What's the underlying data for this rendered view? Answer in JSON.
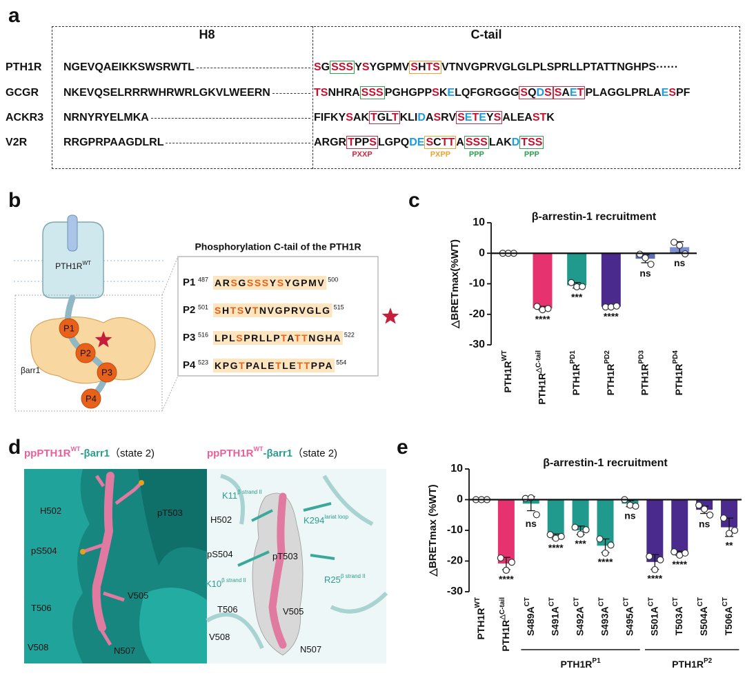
{
  "panel_labels": [
    "a",
    "b",
    "c",
    "d",
    "e"
  ],
  "alignment": {
    "h8_header": "H8",
    "ctail_header": "C-tail",
    "palette": {
      "r": "#c8102e",
      "b": "#1b9be0",
      "k": "#111111"
    },
    "rows": [
      {
        "name": "PTH1R",
        "h8": "NGEVQAEIKKSWSRWTL",
        "tail": [
          [
            "S",
            "r"
          ],
          [
            "G",
            "k"
          ],
          {
            "box": "#2e9e4f",
            "runs": [
              [
                "SSS",
                "r"
              ]
            ]
          },
          [
            "Y",
            "k"
          ],
          [
            "S",
            "r"
          ],
          [
            "YGPMV",
            "k"
          ],
          {
            "box": "#f2a22c",
            "runs": [
              [
                "S",
                "r"
              ],
              [
                "H",
                "k"
              ],
              [
                "TS",
                "r"
              ]
            ]
          },
          [
            "VTNVGPRVGLGLPLSPRLLPTATTNGHPS",
            "k"
          ],
          [
            "······",
            "k"
          ]
        ]
      },
      {
        "name": "GCGR",
        "h8": "NKEVQSELRRRWHRWRLGKVLWEERN",
        "tail": [
          [
            "TS",
            "r"
          ],
          [
            "NHRA",
            "k"
          ],
          {
            "box": "#2e9e4f",
            "runs": [
              [
                "SSS",
                "r"
              ]
            ]
          },
          [
            "PGHGPP",
            "k"
          ],
          [
            "S",
            "r"
          ],
          [
            "K",
            "k"
          ],
          [
            "E",
            "b"
          ],
          [
            "LQFGRGGG",
            "k"
          ],
          {
            "box": "#d9243d",
            "runs": [
              [
                "S",
                "r"
              ],
              [
                "Q",
                "k"
              ],
              [
                "D",
                "b"
              ],
              [
                "S",
                "r"
              ]
            ]
          },
          {
            "box": "#d9243d",
            "runs": [
              [
                "S",
                "r"
              ],
              [
                "A",
                "k"
              ],
              [
                "E",
                "b"
              ],
              [
                "T",
                "r"
              ]
            ]
          },
          [
            "PLAGGLPRLA",
            "k"
          ],
          [
            "E",
            "b"
          ],
          [
            "S",
            "r"
          ],
          [
            "PF",
            "k"
          ]
        ]
      },
      {
        "name": "ACKR3",
        "h8": "NRNYRYELMKA",
        "tail": [
          [
            "FIFKY",
            "k"
          ],
          [
            "S",
            "r"
          ],
          [
            "AK",
            "k"
          ],
          {
            "box": "#d9243d",
            "runs": [
              [
                "T",
                "r"
              ],
              [
                "GL",
                "k"
              ],
              [
                "T",
                "r"
              ]
            ]
          },
          [
            "KLI",
            "k"
          ],
          [
            "D",
            "b"
          ],
          [
            "A",
            "k"
          ],
          [
            "S",
            "r"
          ],
          [
            "RV",
            "k"
          ],
          {
            "box": "#d9243d",
            "runs": [
              [
                "S",
                "r"
              ],
              [
                "E",
                "b"
              ],
              [
                "T",
                "r"
              ],
              [
                "E",
                "b"
              ],
              [
                "Y",
                "k"
              ],
              [
                "S",
                "r"
              ]
            ]
          },
          [
            "ALEA",
            "k"
          ],
          [
            "ST",
            "r"
          ],
          [
            "K",
            "k"
          ]
        ]
      },
      {
        "name": "V2R",
        "h8": "RRGPRPAAGDLRL",
        "tail": [
          [
            "ARGR",
            "k"
          ],
          {
            "box": "#d9243d",
            "motif": "PXXP",
            "runs": [
              [
                "T",
                "r"
              ],
              [
                "PP",
                "k"
              ],
              [
                "S",
                "r"
              ]
            ]
          },
          [
            "LGPQ",
            "k"
          ],
          [
            "DE",
            "b"
          ],
          {
            "box": "#f2a22c",
            "motif": "PXPP",
            "runs": [
              [
                "S",
                "r"
              ],
              [
                "C",
                "k"
              ],
              [
                "TT",
                "r"
              ]
            ]
          },
          [
            "A",
            "k"
          ],
          {
            "box": "#2e9e4f",
            "motif": "PPP",
            "runs": [
              [
                "SSS",
                "r"
              ]
            ]
          },
          [
            "LAK",
            "k"
          ],
          [
            "D",
            "b"
          ],
          {
            "box": "#2e9e4f",
            "motif": "PPP",
            "runs": [
              [
                "TSS",
                "r"
              ]
            ]
          }
        ]
      }
    ]
  },
  "c_tail_panel": {
    "receptor_label": "PTH1R",
    "receptor_sup": "WT",
    "arrestin_label": "βarr1",
    "beads": [
      "P1",
      "P2",
      "P3",
      "P4"
    ],
    "table_title": "Phosphorylation C-tail  of the PTH1R",
    "highlight_color": "#e8611a",
    "rows": [
      {
        "label": "P1",
        "start": 487,
        "seq": "ARSGSSSYSYGPMV",
        "end": 500
      },
      {
        "label": "P2",
        "start": 501,
        "seq": "SHTSVTNVGPRVGLG",
        "end": 515
      },
      {
        "label": "P3",
        "start": 516,
        "seq": "LPLSPRLLPTATTNGHA",
        "end": 522
      },
      {
        "label": "P4",
        "start": 523,
        "seq": "KPGTPALETLETTPPA",
        "end": 554
      }
    ]
  },
  "structure_views": [
    {
      "title": {
        "receptor": "ppPTH1R",
        "sup": "WT",
        "partner": "-βarr1",
        "state": "（state 2)"
      },
      "labels": [
        {
          "text": "H502"
        },
        {
          "text": "pT503"
        },
        {
          "text": "pS504"
        },
        {
          "text": "V505"
        },
        {
          "text": "T506"
        },
        {
          "text": "V508"
        },
        {
          "text": "N507"
        }
      ]
    },
    {
      "title": {
        "receptor": "ppPTH1R",
        "sup": "WT",
        "partner": "-βarr1",
        "state": "（state 2)"
      },
      "labels": [
        {
          "text": "H502"
        },
        {
          "text": "K11",
          "sup": "β strand II",
          "color": "#2a9d8f"
        },
        {
          "text": "K294",
          "sup": "lariat loop",
          "color": "#2a9d8f"
        },
        {
          "text": "pS504"
        },
        {
          "text": "pT503"
        },
        {
          "text": "K10",
          "sup": "β strand II",
          "color": "#2a9d8f"
        },
        {
          "text": "R25",
          "sup": "β strand II",
          "color": "#2a9d8f"
        },
        {
          "text": "T506"
        },
        {
          "text": "V505"
        },
        {
          "text": "V508"
        },
        {
          "text": "N507"
        }
      ]
    }
  ],
  "chart_data": [
    {
      "type": "bar",
      "title": "β-arrestin-1 recruitment",
      "y_label": "△BRETmax(%WT)",
      "categories": [
        "PTH1R",
        "PTH1R",
        "PTH1R",
        "PTH1R",
        "PTH1R",
        "PTH1R"
      ],
      "category_sups": [
        "WT",
        "△C-tail",
        "PD1",
        "PD2",
        "PD3",
        "PD4"
      ],
      "values": [
        0,
        -18,
        -10.5,
        -17.5,
        -1.8,
        2
      ],
      "errors": [
        0,
        0.6,
        0.9,
        0.3,
        1.3,
        1.8
      ],
      "points": [
        [
          0,
          0,
          0
        ],
        [
          -17.4,
          -18.5,
          -18.1
        ],
        [
          -9.6,
          -11,
          -10.9
        ],
        [
          -17.6,
          -17.6,
          -17.3
        ],
        [
          -0.3,
          -1.5,
          -3.6
        ],
        [
          3.6,
          2.6,
          -0.2
        ]
      ],
      "significance": [
        null,
        "****",
        "***",
        "****",
        "ns",
        "ns"
      ],
      "colors": [
        "#e6336f",
        "#e6336f",
        "#1f9a8d",
        "#4a2a8c",
        "#5a6fb5",
        "#7b8ed2"
      ],
      "ylim": [
        -30,
        10
      ],
      "yticks": [
        10,
        0,
        -10,
        -20,
        -30
      ]
    },
    {
      "type": "bar",
      "title": "β-arrestin-1 recruitment",
      "y_label": "△BRETmax  (%WT)",
      "categories": [
        "PTH1R",
        "PTH1R",
        "S489A",
        "S491A",
        "S492A",
        "S493A",
        "S495A",
        "S501A",
        "T503A",
        "S504A",
        "T506A"
      ],
      "category_sups": [
        "WT",
        "△C-tail",
        "CT",
        "CT",
        "CT",
        "CT",
        "CT",
        "CT",
        "CT",
        "CT",
        "CT"
      ],
      "values": [
        0,
        -20.8,
        -1.3,
        -12,
        -10,
        -15,
        -1.3,
        -20.3,
        -17.5,
        -3.3,
        -9
      ],
      "errors": [
        0,
        2,
        2.3,
        0.8,
        1.4,
        2.2,
        1,
        2.4,
        0.7,
        1.2,
        3
      ],
      "points": [
        [
          0,
          0,
          0
        ],
        [
          -19,
          -23,
          -20.4
        ],
        [
          0.4,
          0.6,
          -4.9
        ],
        [
          -11.4,
          -12.6,
          -12
        ],
        [
          -9,
          -11.2,
          -9.8
        ],
        [
          -12.8,
          -17.4,
          -14.8
        ],
        [
          0,
          -1.8,
          -2.1
        ],
        [
          -18.5,
          -22.8,
          -19.6
        ],
        [
          -17,
          -18.1,
          -17.4
        ],
        [
          -1.8,
          -3.1,
          -5
        ],
        [
          -6,
          -11,
          -10
        ]
      ],
      "significance": [
        null,
        "****",
        "ns",
        "****",
        "***",
        "****",
        "ns",
        "****",
        "****",
        "ns",
        "**"
      ],
      "colors": [
        "#e6336f",
        "#e6336f",
        "#1f9a8d",
        "#1f9a8d",
        "#1f9a8d",
        "#1f9a8d",
        "#1f9a8d",
        "#4a2a8c",
        "#4a2a8c",
        "#4a2a8c",
        "#4a2a8c"
      ],
      "groups": [
        {
          "label": "PTH1R",
          "sup": "P1",
          "first": 2,
          "last": 6
        },
        {
          "label": "PTH1R",
          "sup": "P2",
          "first": 7,
          "last": 10
        }
      ],
      "ylim": [
        -30,
        10
      ],
      "yticks": [
        10,
        0,
        -10,
        -20,
        -30
      ]
    }
  ]
}
